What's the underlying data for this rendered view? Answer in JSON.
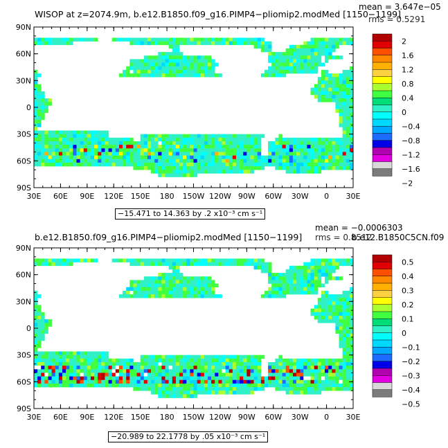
{
  "panels": [
    {
      "title": "WISOP at z=2074.9m, b.e12.B1850.f09_g16.PIMP4−pliomip2.modMed [1150−1199]",
      "overlay": "b.e12.B1850C5CN.f09",
      "mean": "mean = 3.647e−05",
      "rms": "rms = 0.5291",
      "range_label": "−15.471 to 14.363 by .2 x10⁻³ cm s⁻¹",
      "colorbar_labels": [
        "2",
        "1.6",
        "1.2",
        "0.8",
        "0.4",
        "0",
        "−0.4",
        "−0.8",
        "−1.2",
        "−1.6",
        "−2"
      ]
    },
    {
      "title": "b.e12.B1850.f09_g16.PIMP4−pliomip2.modMed [1150−1199]",
      "overlay": "b.e12.B1850C5CN.f09",
      "mean": "mean = −0.0006303",
      "rms": "rms = 0.8512",
      "range_label": "−20.989 to 22.1778 by .05 x10⁻³ cm s⁻¹",
      "colorbar_labels": [
        "0.5",
        "0.4",
        "0.3",
        "0.2",
        "0.1",
        "0",
        "−0.1",
        "−0.2",
        "−0.3",
        "−0.4",
        "−0.5"
      ]
    }
  ],
  "chart_data": [
    {
      "type": "heatmap",
      "title": "WISOP at z=2074.9m, b.e12.B1850.f09_g16.PIMP4−pliomip2.modMed [1150−1199]",
      "x_ticks": [
        "30E",
        "60E",
        "90E",
        "120E",
        "150E",
        "180",
        "150W",
        "120W",
        "90W",
        "60W",
        "30W",
        "0",
        "30E"
      ],
      "y_ticks": [
        "90N",
        "60N",
        "30N",
        "0",
        "30S",
        "60S",
        "90S"
      ],
      "xlim": [
        30,
        390
      ],
      "ylim": [
        -90,
        90
      ],
      "colorbar": {
        "min": -2,
        "max": 2,
        "step": 0.4
      },
      "mean": 3.647e-05,
      "rms": 0.5291,
      "data_range": [
        -15.471,
        14.363
      ]
    },
    {
      "type": "heatmap",
      "title": "b.e12.B1850.f09_g16.PIMP4−pliomip2.modMed [1150−1199]",
      "x_ticks": [
        "30E",
        "60E",
        "90E",
        "120E",
        "150E",
        "180",
        "150W",
        "120W",
        "90W",
        "60W",
        "30W",
        "0",
        "30E"
      ],
      "y_ticks": [
        "90N",
        "60N",
        "30N",
        "0",
        "30S",
        "60S",
        "90S"
      ],
      "xlim": [
        30,
        390
      ],
      "ylim": [
        -90,
        90
      ],
      "colorbar": {
        "min": -0.5,
        "max": 0.5,
        "step": 0.1
      },
      "mean": -0.0006303,
      "rms": 0.8512,
      "data_range": [
        -20.989,
        22.1778
      ]
    }
  ],
  "palette": [
    "#ffffff",
    "#7b7b7b",
    "#d8d8d8",
    "#b000b0",
    "#e000e0",
    "#0000e8",
    "#1e6cff",
    "#00a8ff",
    "#00d8ff",
    "#00ffff",
    "#30f0c8",
    "#00dc78",
    "#40ff40",
    "#aaff30",
    "#ffff00",
    "#ffd040",
    "#ffb000",
    "#ff8800",
    "#ff5000",
    "#e00000",
    "#b00000"
  ]
}
